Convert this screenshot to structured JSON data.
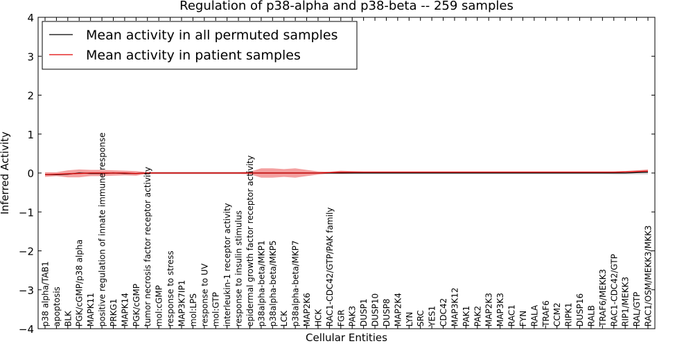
{
  "chart_data": {
    "type": "line",
    "title": "Regulation of p38-alpha and p38-beta -- 259 samples",
    "xlabel": "Cellular Entities",
    "ylabel": "Inferred Activity",
    "ylim": [
      -4,
      4
    ],
    "yticks": [
      -4,
      -3,
      -2,
      -1,
      0,
      1,
      2,
      3,
      4
    ],
    "ytick_labels": [
      "−4",
      "−3",
      "−2",
      "−1",
      "0",
      "1",
      "2",
      "3",
      "4"
    ],
    "legend": {
      "placement": "top-left",
      "entries": [
        "Mean activity in all permuted samples",
        "Mean activity in patient samples"
      ]
    },
    "categories": [
      "p38 alpha/TAB1",
      "apoptosis",
      "BLK",
      "PGK/cGMP/p38 alpha",
      "MAPK11",
      "positive regulation of innate immune response",
      "PRKG1",
      "MAPK14",
      "PGK/cGMP",
      "tumor necrosis factor receptor activity",
      "mol:cGMP",
      "response to stress",
      "MAP3K7IP1",
      "mol:LPS",
      "response to UV",
      "mol:GTP",
      "interleukin-1 receptor activity",
      "response to insulin stimulus",
      "epidermal growth factor receptor activity",
      "p38alpha-beta/MKP1",
      "p38alpha-beta/MKP5",
      "LCK",
      "p38alpha-beta/MKP7",
      "MAP2K6",
      "HCK",
      "RAC1-CDC42/GTP/PAK family",
      "FGR",
      "PAK3",
      "DUSP1",
      "DUSP10",
      "DUSP8",
      "MAP2K4",
      "LYN",
      "SRC",
      "YES1",
      "CDC42",
      "MAP3K12",
      "PAK1",
      "PAK2",
      "MAP2K3",
      "MAP3K3",
      "RAC1",
      "FYN",
      "RALA",
      "TRAF6",
      "CCM2",
      "RIPK1",
      "DUSP16",
      "RALB",
      "TRAF6/MEKK3",
      "RAC1-CDC42/GTP",
      "RIP1/MEKK3",
      "RAL/GTP",
      "RAC1/OSM/MEKK3/MKK3"
    ],
    "series": [
      {
        "name": "Mean activity in all permuted samples",
        "color": "#000000",
        "band_color": "#c8c8c8",
        "values": [
          -0.04,
          -0.04,
          -0.03,
          0.0,
          -0.01,
          -0.01,
          0.0,
          -0.01,
          -0.01,
          0.0,
          0.0,
          0.0,
          0.0,
          0.0,
          0.0,
          0.0,
          0.0,
          0.0,
          0.0,
          0.0,
          0.0,
          0.0,
          0.0,
          0.0,
          0.0,
          0.0,
          0.0,
          0.0,
          0.0,
          0.0,
          0.0,
          0.0,
          0.0,
          0.0,
          0.0,
          0.0,
          0.0,
          0.0,
          0.0,
          0.0,
          0.0,
          0.0,
          0.0,
          0.0,
          0.0,
          0.0,
          0.0,
          0.0,
          0.0,
          0.0,
          0.0,
          0.0,
          0.01,
          0.02
        ],
        "band": [
          0.03,
          0.03,
          0.03,
          0.03,
          0.03,
          0.03,
          0.03,
          0.03,
          0.03,
          0.03,
          0.03,
          0.03,
          0.03,
          0.03,
          0.03,
          0.03,
          0.03,
          0.03,
          0.03,
          0.03,
          0.03,
          0.03,
          0.03,
          0.03,
          0.03,
          0.03,
          0.03,
          0.03,
          0.03,
          0.03,
          0.03,
          0.03,
          0.03,
          0.03,
          0.03,
          0.03,
          0.03,
          0.03,
          0.03,
          0.03,
          0.03,
          0.03,
          0.03,
          0.03,
          0.03,
          0.03,
          0.03,
          0.03,
          0.03,
          0.03,
          0.04,
          0.04,
          0.05,
          0.06
        ]
      },
      {
        "name": "Mean activity in patient samples",
        "color": "#e00000",
        "band_color": "#f08080",
        "values": [
          -0.04,
          -0.03,
          -0.02,
          -0.01,
          0.0,
          0.0,
          0.0,
          0.0,
          -0.01,
          0.0,
          0.0,
          0.0,
          0.0,
          0.0,
          0.0,
          0.0,
          0.0,
          0.0,
          0.0,
          0.0,
          0.0,
          0.0,
          0.0,
          0.0,
          0.0,
          0.01,
          0.02,
          0.02,
          0.02,
          0.02,
          0.02,
          0.02,
          0.02,
          0.02,
          0.02,
          0.02,
          0.02,
          0.02,
          0.02,
          0.02,
          0.02,
          0.02,
          0.02,
          0.02,
          0.02,
          0.02,
          0.02,
          0.02,
          0.02,
          0.02,
          0.02,
          0.03,
          0.04,
          0.05
        ],
        "band": [
          0.06,
          0.05,
          0.09,
          0.1,
          0.08,
          0.08,
          0.07,
          0.06,
          0.06,
          0.02,
          0.02,
          0.02,
          0.02,
          0.02,
          0.02,
          0.02,
          0.02,
          0.02,
          0.03,
          0.12,
          0.12,
          0.1,
          0.12,
          0.08,
          0.04,
          0.02,
          0.04,
          0.03,
          0.02,
          0.02,
          0.02,
          0.02,
          0.02,
          0.02,
          0.02,
          0.02,
          0.02,
          0.02,
          0.02,
          0.02,
          0.02,
          0.02,
          0.02,
          0.02,
          0.02,
          0.02,
          0.02,
          0.02,
          0.02,
          0.02,
          0.02,
          0.02,
          0.03,
          0.04
        ]
      }
    ]
  }
}
